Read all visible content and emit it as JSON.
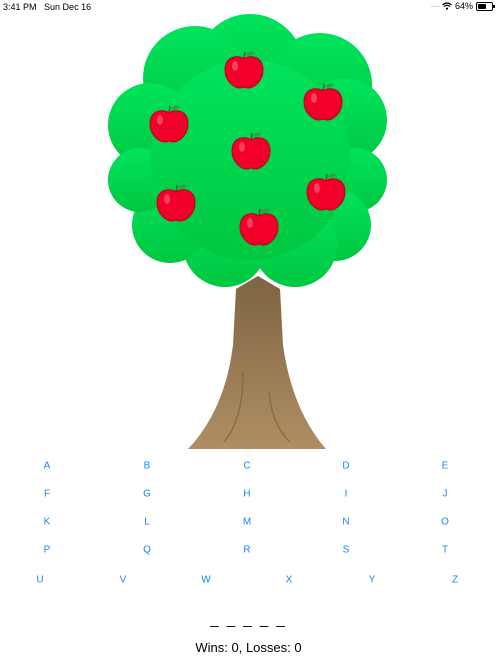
{
  "status_bar": {
    "time": "3:41 PM",
    "date": "Sun Dec 16",
    "battery": "64%",
    "battery_level": 0.64
  },
  "game": {
    "apples_remaining": 7,
    "colors": {
      "leaves": "#00d24a",
      "apple": "#f2002a",
      "trunk": "#9a7a50",
      "key": "#1a84ff"
    }
  },
  "keyboard": {
    "rows": [
      [
        "A",
        "B",
        "C",
        "D",
        "E"
      ],
      [
        "F",
        "G",
        "H",
        "I",
        "J"
      ],
      [
        "K",
        "L",
        "M",
        "N",
        "O"
      ],
      [
        "P",
        "Q",
        "R",
        "S",
        "T"
      ],
      [
        "U",
        "V",
        "W",
        "X",
        "Y",
        "Z"
      ]
    ]
  },
  "word_display": "_ _ _ _ _",
  "score_text": "Wins: 0, Losses: 0"
}
